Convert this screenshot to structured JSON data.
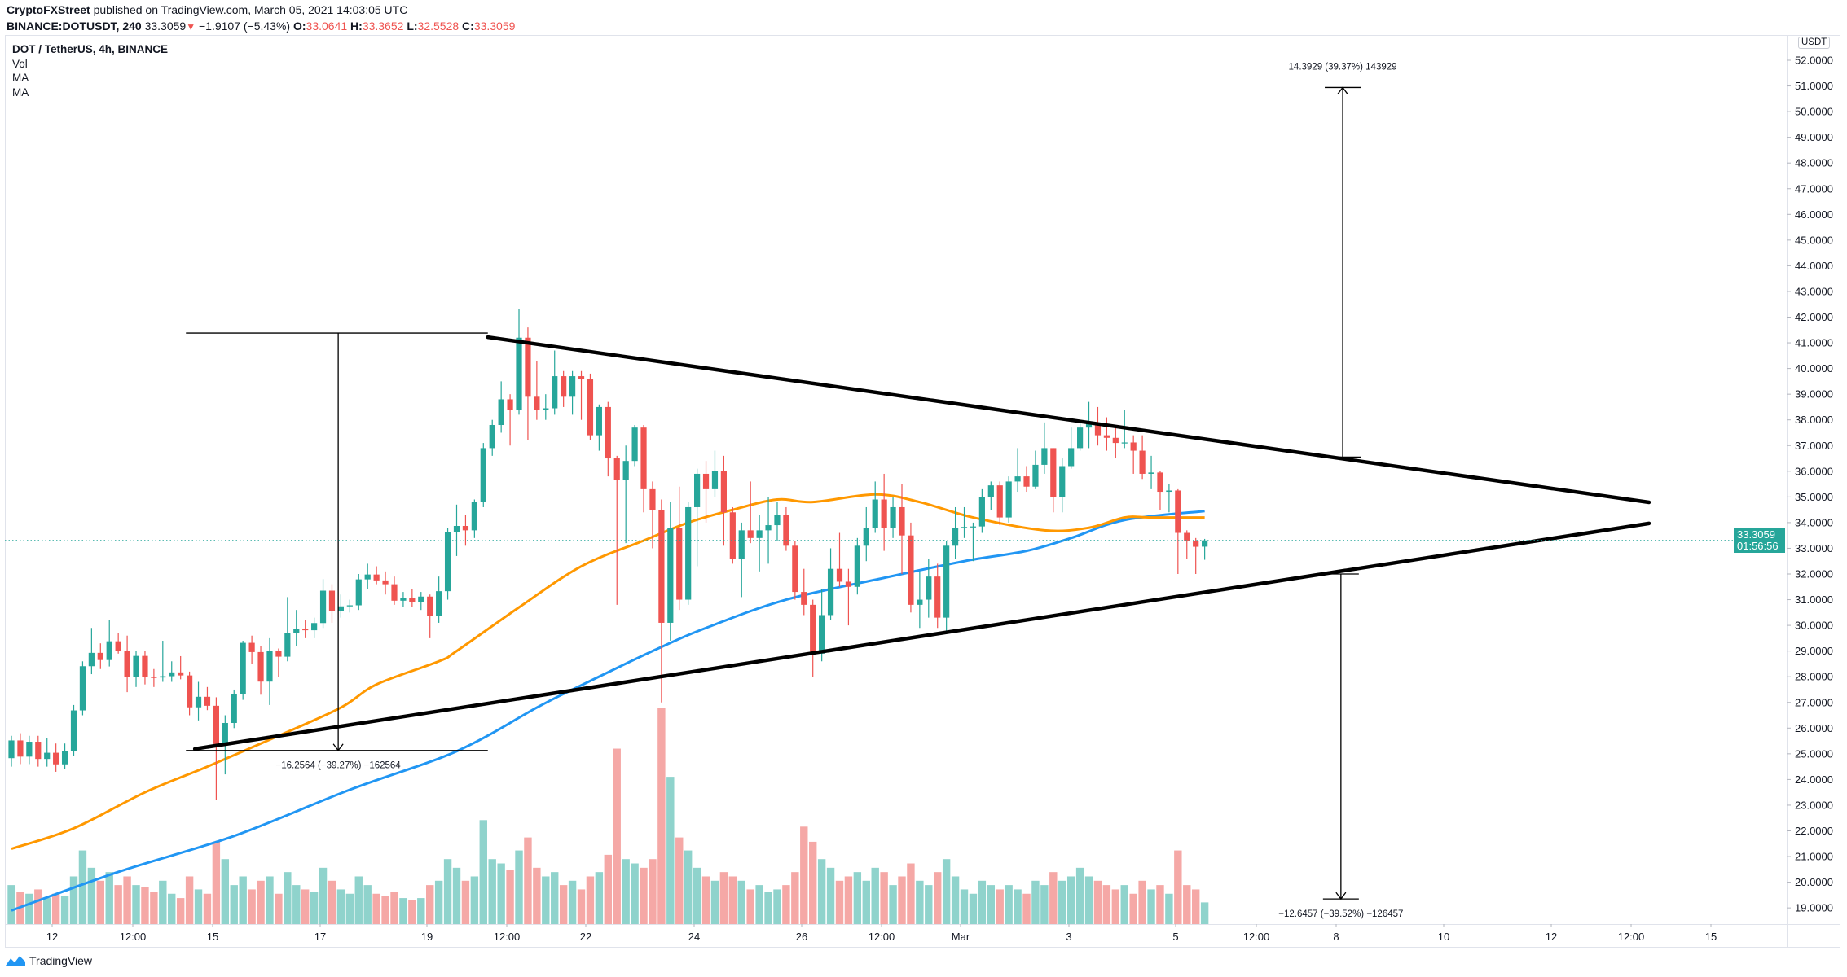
{
  "header": {
    "author": "CryptoFXStreet",
    "published": " published on TradingView.com, March 05, 2021 14:03:05 UTC",
    "symbol": "BINANCE:DOTUSDT, 240",
    "last": "33.3059",
    "change": "−1.9107 (−5.43%)",
    "o_label": "O:",
    "o": "33.0641",
    "h_label": "H:",
    "h": "33.3652",
    "l_label": "L:",
    "l": "32.5528",
    "c_label": "C:",
    "c": "33.3059"
  },
  "legend": {
    "title": "DOT / TetherUS, 4h, BINANCE",
    "vol": "Vol",
    "ma1": "MA",
    "ma2": "MA"
  },
  "price_axis": {
    "currency": "USDT",
    "last_price": "33.3059",
    "countdown": "01:56:56"
  },
  "brand": "TradingView",
  "chart_data": {
    "type": "candlestick",
    "interval": "4h",
    "ylim": [
      18.5,
      52.3
    ],
    "y_ticks": [
      "52.0000",
      "51.0000",
      "50.0000",
      "49.0000",
      "48.0000",
      "47.0000",
      "46.0000",
      "45.0000",
      "44.0000",
      "43.0000",
      "42.0000",
      "41.0000",
      "40.0000",
      "39.0000",
      "38.0000",
      "37.0000",
      "36.0000",
      "35.0000",
      "34.0000",
      "33.0000",
      "32.0000",
      "31.0000",
      "30.0000",
      "29.0000",
      "28.0000",
      "27.0000",
      "26.0000",
      "25.0000",
      "24.0000",
      "23.0000",
      "22.0000",
      "21.0000",
      "20.0000",
      "19.0000"
    ],
    "x_ticks": [
      "12",
      "12:00",
      "15",
      "17",
      "19",
      "12:00",
      "22",
      "24",
      "26",
      "12:00",
      "Mar",
      "3",
      "5",
      "12:00",
      "8",
      "10",
      "12",
      "12:00",
      "15"
    ],
    "colors": {
      "up": "#26a69a",
      "down": "#ef5350",
      "vol_up": "#8fd3cc",
      "vol_down": "#f5a8a6",
      "ma_fast": "#ff9800",
      "ma_slow": "#2196f3",
      "trendline": "#000000"
    },
    "candle_fields": [
      "open",
      "high",
      "low",
      "close",
      "volume_relative"
    ],
    "candles": [
      [
        24.83,
        25.7,
        24.5,
        25.52,
        18
      ],
      [
        25.52,
        25.8,
        24.6,
        24.89,
        15
      ],
      [
        24.89,
        25.7,
        24.6,
        25.47,
        14
      ],
      [
        25.47,
        25.7,
        24.5,
        24.8,
        16
      ],
      [
        24.8,
        25.6,
        24.5,
        25.04,
        12
      ],
      [
        25.04,
        25.4,
        24.3,
        24.59,
        14
      ],
      [
        24.59,
        25.4,
        24.4,
        25.1,
        13
      ],
      [
        25.1,
        26.9,
        24.9,
        26.69,
        22
      ],
      [
        26.69,
        28.6,
        26.5,
        28.41,
        34
      ],
      [
        28.41,
        29.9,
        28.1,
        28.93,
        26
      ],
      [
        28.93,
        29.3,
        28.3,
        28.65,
        20
      ],
      [
        28.65,
        30.2,
        28.4,
        29.38,
        24
      ],
      [
        29.38,
        29.7,
        28.9,
        29.02,
        18
      ],
      [
        29.02,
        29.6,
        27.4,
        27.99,
        22
      ],
      [
        27.99,
        29.0,
        27.6,
        28.81,
        18
      ],
      [
        28.81,
        29.0,
        27.7,
        27.99,
        17
      ],
      [
        27.99,
        28.3,
        27.6,
        27.97,
        15
      ],
      [
        27.97,
        29.4,
        27.8,
        28.02,
        20
      ],
      [
        28.02,
        28.6,
        27.8,
        28.17,
        14
      ],
      [
        28.17,
        28.8,
        27.9,
        28.05,
        12
      ],
      [
        28.05,
        28.2,
        26.5,
        26.81,
        22
      ],
      [
        26.81,
        27.8,
        26.3,
        27.22,
        16
      ],
      [
        27.22,
        27.6,
        26.7,
        26.87,
        14
      ],
      [
        26.87,
        27.2,
        23.2,
        25.38,
        38
      ],
      [
        25.38,
        26.5,
        24.2,
        26.2,
        30
      ],
      [
        26.2,
        27.5,
        26.0,
        27.32,
        18
      ],
      [
        27.32,
        29.4,
        27.1,
        29.32,
        22
      ],
      [
        29.32,
        29.6,
        28.5,
        28.96,
        16
      ],
      [
        28.96,
        29.2,
        27.3,
        27.81,
        20
      ],
      [
        27.81,
        29.5,
        26.9,
        28.99,
        22
      ],
      [
        28.99,
        29.1,
        28.0,
        28.78,
        14
      ],
      [
        28.78,
        31.1,
        28.6,
        29.69,
        24
      ],
      [
        29.69,
        30.6,
        29.2,
        29.85,
        18
      ],
      [
        29.85,
        30.2,
        29.5,
        29.81,
        16
      ],
      [
        29.81,
        30.3,
        29.5,
        30.09,
        15
      ],
      [
        30.09,
        31.8,
        29.9,
        31.35,
        26
      ],
      [
        31.35,
        31.6,
        30.1,
        30.57,
        20
      ],
      [
        30.57,
        31.2,
        30.3,
        30.74,
        16
      ],
      [
        30.74,
        31.0,
        30.5,
        30.78,
        14
      ],
      [
        30.78,
        32.0,
        30.6,
        31.79,
        22
      ],
      [
        31.79,
        32.4,
        31.4,
        31.98,
        18
      ],
      [
        31.98,
        32.3,
        31.6,
        31.75,
        14
      ],
      [
        31.75,
        32.1,
        31.2,
        31.6,
        13
      ],
      [
        31.6,
        31.9,
        30.8,
        30.96,
        15
      ],
      [
        30.96,
        31.3,
        30.7,
        31.08,
        12
      ],
      [
        31.08,
        31.4,
        30.7,
        30.9,
        11
      ],
      [
        30.9,
        31.3,
        30.6,
        31.12,
        12
      ],
      [
        31.12,
        31.2,
        29.5,
        30.38,
        18
      ],
      [
        30.38,
        31.9,
        30.1,
        31.33,
        20
      ],
      [
        31.33,
        33.8,
        31.0,
        33.63,
        30
      ],
      [
        33.63,
        34.7,
        32.7,
        33.87,
        26
      ],
      [
        33.87,
        34.3,
        33.1,
        33.7,
        20
      ],
      [
        33.7,
        34.9,
        33.4,
        34.8,
        22
      ],
      [
        34.8,
        37.1,
        34.6,
        36.9,
        48
      ],
      [
        36.9,
        38.0,
        36.6,
        37.8,
        30
      ],
      [
        37.8,
        39.5,
        37.5,
        38.8,
        28
      ],
      [
        38.8,
        39.0,
        37.0,
        38.4,
        25
      ],
      [
        38.4,
        42.3,
        38.2,
        41.2,
        34
      ],
      [
        41.2,
        41.6,
        37.2,
        38.9,
        40
      ],
      [
        38.9,
        40.3,
        38.0,
        38.4,
        26
      ],
      [
        38.4,
        39.0,
        38.0,
        38.45,
        22
      ],
      [
        38.45,
        40.7,
        38.2,
        39.7,
        24
      ],
      [
        39.7,
        39.9,
        38.5,
        38.9,
        18
      ],
      [
        38.9,
        39.9,
        38.2,
        39.7,
        20
      ],
      [
        39.7,
        39.9,
        38.0,
        39.6,
        16
      ],
      [
        39.6,
        39.8,
        37.2,
        37.4,
        22
      ],
      [
        37.4,
        38.6,
        36.8,
        38.5,
        24
      ],
      [
        38.5,
        38.7,
        35.8,
        36.5,
        32
      ],
      [
        36.5,
        36.6,
        30.8,
        35.65,
        81
      ],
      [
        35.65,
        37.0,
        33.2,
        36.4,
        30
      ],
      [
        36.4,
        37.8,
        36.2,
        37.7,
        28
      ],
      [
        37.7,
        37.8,
        34.4,
        35.3,
        26
      ],
      [
        35.3,
        35.6,
        33.0,
        34.5,
        30
      ],
      [
        34.5,
        34.9,
        27.0,
        30.1,
        100
      ],
      [
        30.1,
        34.8,
        29.4,
        33.8,
        68
      ],
      [
        33.8,
        35.4,
        30.6,
        31.0,
        40
      ],
      [
        31.0,
        34.8,
        30.8,
        34.6,
        34
      ],
      [
        34.6,
        36.1,
        32.3,
        35.9,
        26
      ],
      [
        35.9,
        36.4,
        34.0,
        35.3,
        22
      ],
      [
        35.3,
        36.8,
        35.0,
        36.0,
        20
      ],
      [
        36.0,
        36.6,
        33.1,
        34.4,
        24
      ],
      [
        34.4,
        34.6,
        32.4,
        32.6,
        22
      ],
      [
        32.6,
        34.0,
        31.1,
        33.7,
        20
      ],
      [
        33.7,
        35.6,
        33.2,
        33.4,
        16
      ],
      [
        33.4,
        34.3,
        32.1,
        33.7,
        18
      ],
      [
        33.7,
        35.0,
        32.4,
        33.9,
        15
      ],
      [
        33.9,
        34.8,
        33.3,
        34.3,
        16
      ],
      [
        34.3,
        34.6,
        32.9,
        33.1,
        18
      ],
      [
        33.1,
        33.3,
        31.0,
        31.3,
        24
      ],
      [
        31.3,
        32.2,
        30.4,
        30.8,
        45
      ],
      [
        30.8,
        31.0,
        28.0,
        28.9,
        38
      ],
      [
        28.9,
        31.4,
        28.6,
        30.4,
        30
      ],
      [
        30.4,
        33.0,
        30.2,
        32.2,
        26
      ],
      [
        32.2,
        33.6,
        31.5,
        31.7,
        20
      ],
      [
        31.7,
        32.2,
        30.0,
        31.5,
        22
      ],
      [
        31.5,
        33.4,
        31.2,
        33.1,
        24
      ],
      [
        33.1,
        34.6,
        32.5,
        33.8,
        20
      ],
      [
        33.8,
        35.6,
        33.6,
        34.9,
        26
      ],
      [
        34.9,
        35.9,
        32.9,
        33.8,
        24
      ],
      [
        33.8,
        35.0,
        33.4,
        34.6,
        18
      ],
      [
        34.6,
        35.5,
        32.0,
        33.5,
        22
      ],
      [
        33.5,
        34.0,
        30.5,
        30.8,
        28
      ],
      [
        30.8,
        32.1,
        29.9,
        31.0,
        20
      ],
      [
        31.0,
        32.6,
        30.3,
        31.9,
        18
      ],
      [
        31.9,
        32.4,
        29.9,
        30.3,
        24
      ],
      [
        30.3,
        33.3,
        29.7,
        33.1,
        30
      ],
      [
        33.1,
        34.6,
        32.6,
        33.8,
        22
      ],
      [
        33.8,
        34.6,
        33.4,
        33.83,
        16
      ],
      [
        33.83,
        34.0,
        32.5,
        33.85,
        14
      ],
      [
        33.85,
        35.3,
        33.6,
        35.0,
        20
      ],
      [
        35.0,
        35.6,
        34.5,
        35.45,
        18
      ],
      [
        35.45,
        35.6,
        33.9,
        34.2,
        16
      ],
      [
        34.2,
        35.8,
        34.0,
        35.6,
        18
      ],
      [
        35.6,
        36.9,
        35.2,
        35.8,
        16
      ],
      [
        35.8,
        36.2,
        35.2,
        35.4,
        14
      ],
      [
        35.4,
        36.8,
        35.3,
        36.25,
        20
      ],
      [
        36.25,
        37.9,
        35.9,
        36.9,
        18
      ],
      [
        36.9,
        36.9,
        34.4,
        35.0,
        24
      ],
      [
        35.0,
        36.5,
        34.4,
        36.2,
        20
      ],
      [
        36.2,
        37.7,
        36.1,
        36.9,
        22
      ],
      [
        36.9,
        38.0,
        36.8,
        37.7,
        26
      ],
      [
        37.7,
        38.7,
        36.9,
        37.85,
        22
      ],
      [
        37.85,
        38.5,
        37.0,
        37.4,
        20
      ],
      [
        37.4,
        38.1,
        36.8,
        37.3,
        18
      ],
      [
        37.3,
        37.8,
        36.5,
        37.1,
        16
      ],
      [
        37.1,
        38.4,
        36.9,
        37.12,
        18
      ],
      [
        37.12,
        37.4,
        35.9,
        36.8,
        14
      ],
      [
        36.8,
        37.4,
        35.7,
        35.9,
        20
      ],
      [
        35.9,
        36.6,
        35.3,
        35.95,
        16
      ],
      [
        35.95,
        36.0,
        34.5,
        35.2,
        18
      ],
      [
        35.2,
        35.5,
        34.4,
        35.25,
        14
      ],
      [
        35.25,
        35.3,
        32.0,
        33.6,
        34
      ],
      [
        33.6,
        33.7,
        32.6,
        33.3,
        18
      ],
      [
        33.3,
        33.4,
        32.0,
        33.06,
        16
      ],
      [
        33.0641,
        33.3652,
        32.5528,
        33.3059,
        10
      ]
    ],
    "ma_fast_points": [
      [
        0,
        21.3
      ],
      [
        7,
        22.1
      ],
      [
        15,
        23.5
      ],
      [
        22,
        24.5
      ],
      [
        30,
        25.7
      ],
      [
        37,
        26.8
      ],
      [
        41,
        27.7
      ],
      [
        48,
        28.6
      ],
      [
        50,
        29.0
      ],
      [
        57,
        30.7
      ],
      [
        64,
        32.3
      ],
      [
        71,
        33.3
      ],
      [
        76,
        34.0
      ],
      [
        81,
        34.5
      ],
      [
        86,
        34.9
      ],
      [
        90,
        34.8
      ],
      [
        97,
        35.1
      ],
      [
        102,
        34.8
      ],
      [
        108,
        34.2
      ],
      [
        116,
        33.7
      ],
      [
        121,
        33.8
      ],
      [
        125,
        34.2
      ],
      [
        128,
        34.2
      ],
      [
        134,
        34.2
      ]
    ],
    "ma_slow_points": [
      [
        0,
        18.9
      ],
      [
        12,
        20.4
      ],
      [
        25,
        21.8
      ],
      [
        38,
        23.6
      ],
      [
        50,
        25.1
      ],
      [
        59,
        26.8
      ],
      [
        63,
        27.5
      ],
      [
        72,
        29.0
      ],
      [
        78,
        29.9
      ],
      [
        87,
        31.0
      ],
      [
        98,
        31.85
      ],
      [
        107,
        32.5
      ],
      [
        114,
        32.9
      ],
      [
        119,
        33.4
      ],
      [
        125,
        34.1
      ],
      [
        134,
        34.45
      ]
    ],
    "trendlines": [
      {
        "from": [
          53.5,
          41.22
        ],
        "to": [
          183.9,
          34.79
        ]
      },
      {
        "from": [
          20.6,
          25.19
        ],
        "to": [
          183.9,
          33.97
        ]
      }
    ],
    "measurements": [
      {
        "bar": 36.7,
        "from_bar": 19.6,
        "to_bar": 53.5,
        "top": 41.38,
        "bottom": 25.13,
        "direction": "down",
        "label": "−16.2564 (−39.27%) −162564",
        "label_pos": "below"
      },
      {
        "bar": 149.5,
        "top": 50.94,
        "bottom": 36.55,
        "direction": "up",
        "label": "14.3929 (39.37%) 143929",
        "label_pos": "above"
      },
      {
        "bar": 149.3,
        "top": 32.0,
        "bottom": 19.35,
        "direction": "down",
        "label": "−12.6457 (−39.52%) −126457",
        "label_pos": "below"
      }
    ]
  }
}
